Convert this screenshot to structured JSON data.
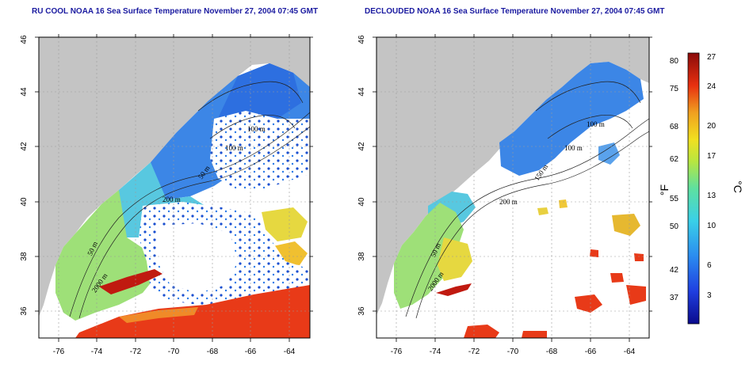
{
  "panels": [
    {
      "id": "left",
      "title": "RU COOL NOAA 16 Sea Surface Temperature November 27, 2004 07:45 GMT",
      "contour_labels": [
        "100 m",
        "100 m",
        "50 m",
        "200 m",
        "50 m",
        "2000 m"
      ]
    },
    {
      "id": "right",
      "title": "DECLOUDED NOAA 16 Sea Surface Temperature November 27, 2004 07:45 GMT",
      "contour_labels": [
        "100 m",
        "100 m",
        "150 m",
        "200 m",
        "50 m",
        "2000 m"
      ]
    }
  ],
  "axes": {
    "lon_ticks": [
      "-76",
      "-74",
      "-72",
      "-70",
      "-68",
      "-66",
      "-64"
    ],
    "lat_ticks": [
      "36",
      "38",
      "40",
      "42",
      "44",
      "46"
    ]
  },
  "colorbar": {
    "fahrenheit_unit": "°F",
    "celsius_unit": "°C",
    "fahrenheit_ticks": [
      "80",
      "75",
      "68",
      "62",
      "55",
      "50",
      "42",
      "37"
    ],
    "celsius_ticks": [
      "27",
      "24",
      "20",
      "17",
      "13",
      "10",
      "6",
      "3"
    ],
    "celsius_range": [
      0,
      28
    ]
  },
  "colors": {
    "land": "#c4c4c4",
    "cloud": "#ffffff",
    "gridline": "#9a9a9a",
    "title": "#1a1aa0"
  }
}
